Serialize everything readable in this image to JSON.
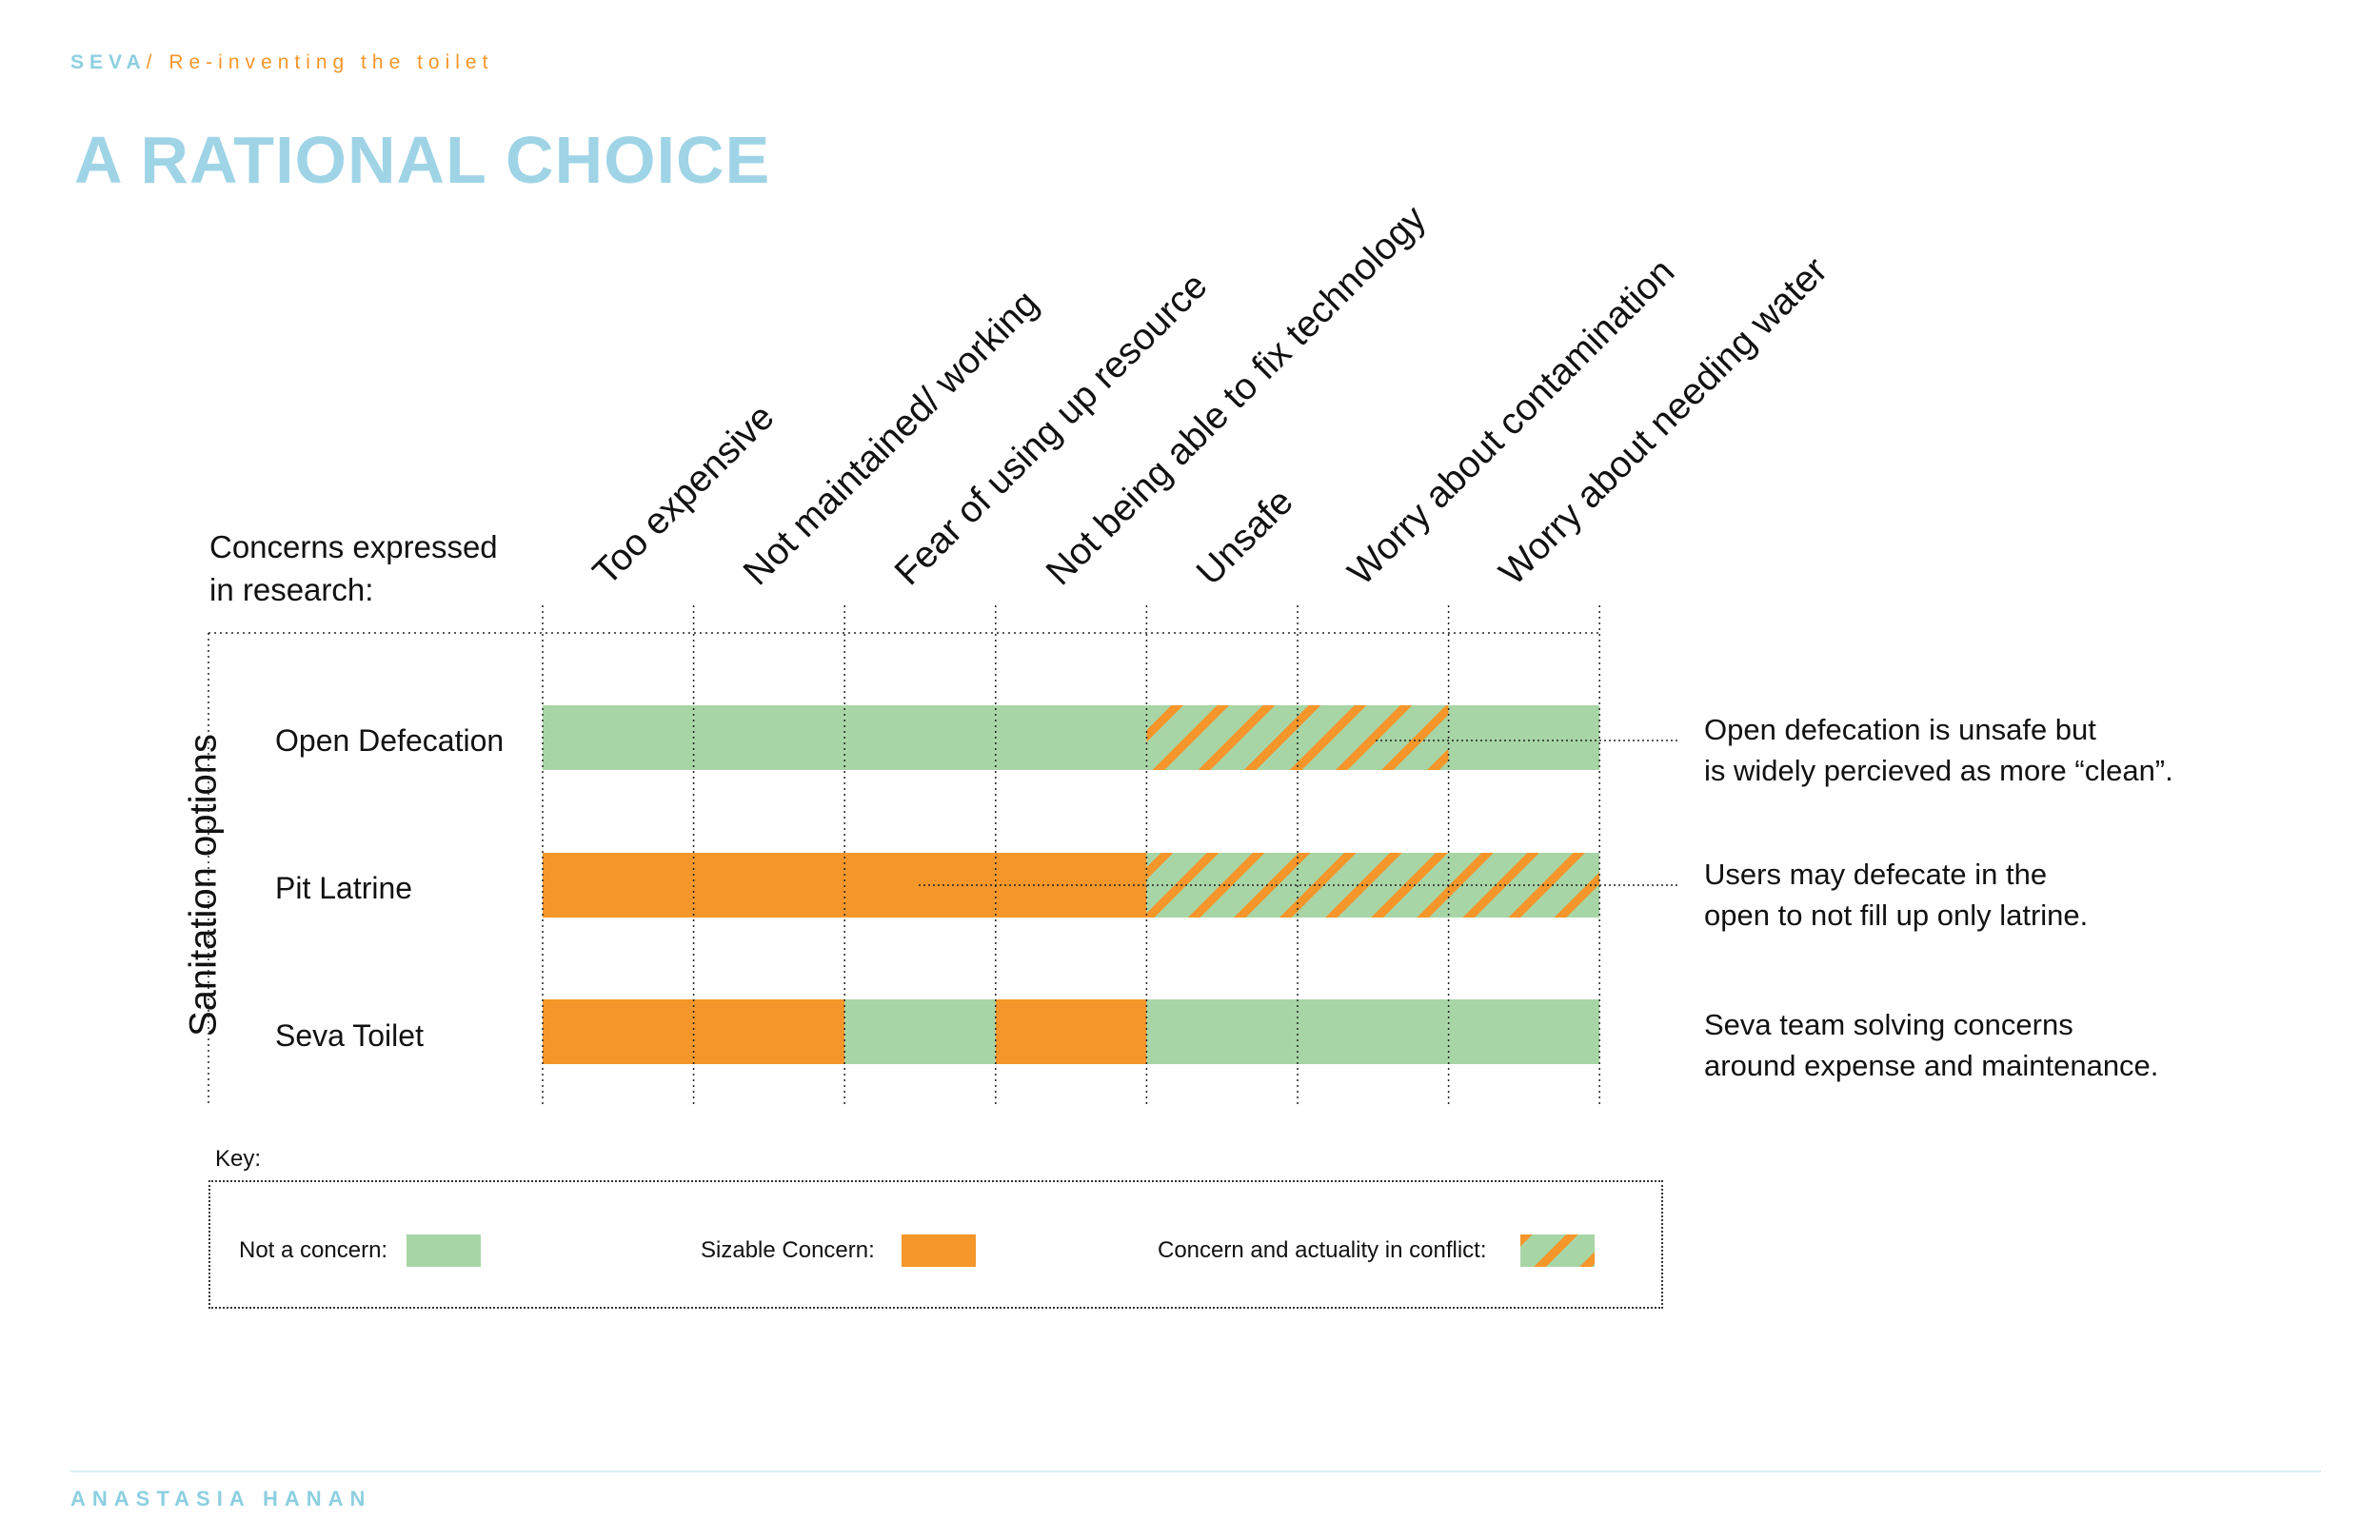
{
  "header": {
    "brand": "SEVA",
    "separator": "/",
    "subtitle": "Re-inventing the toilet"
  },
  "title": "A RATIONAL CHOICE",
  "concerns_caption_line1": "Concerns expressed",
  "concerns_caption_line2": "in research:",
  "row_axis_label": "Sanitation options",
  "colors": {
    "not_concern": "#a8d5a6",
    "sizable": "#f4962a",
    "accent_blue": "#9fd4e6"
  },
  "chart_data": {
    "type": "table",
    "title": "A RATIONAL CHOICE",
    "columns": [
      "Too expensive",
      "Not maintained/ working",
      "Fear of using up resource",
      "Not being able to fix technology",
      "Unsafe",
      "Worry about contamination",
      "Worry about needing water"
    ],
    "rows": [
      {
        "name": "Open Defecation",
        "cells": [
          "not_concern",
          "not_concern",
          "not_concern",
          "not_concern",
          "conflict",
          "conflict",
          "not_concern"
        ]
      },
      {
        "name": "Pit Latrine",
        "cells": [
          "sizable",
          "sizable",
          "sizable",
          "sizable",
          "conflict",
          "conflict",
          "conflict"
        ]
      },
      {
        "name": "Seva Toilet",
        "cells": [
          "sizable",
          "sizable",
          "not_concern",
          "sizable",
          "not_concern",
          "not_concern",
          "not_concern"
        ]
      }
    ],
    "annotations": [
      {
        "row": 0,
        "line1": "Open defecation is unsafe but",
        "line2": "is widely percieved as more “clean”."
      },
      {
        "row": 1,
        "line1": "Users may defecate in the",
        "line2": "open to not fill up only latrine."
      },
      {
        "row": 2,
        "line1": "Seva team solving concerns",
        "line2": "around expense and maintenance."
      }
    ]
  },
  "key": {
    "label": "Key:",
    "not_concern": "Not a concern:",
    "sizable": "Sizable Concern:",
    "conflict": "Concern and actuality in conflict:"
  },
  "footer": {
    "name": "ANASTASIA HANAN"
  }
}
